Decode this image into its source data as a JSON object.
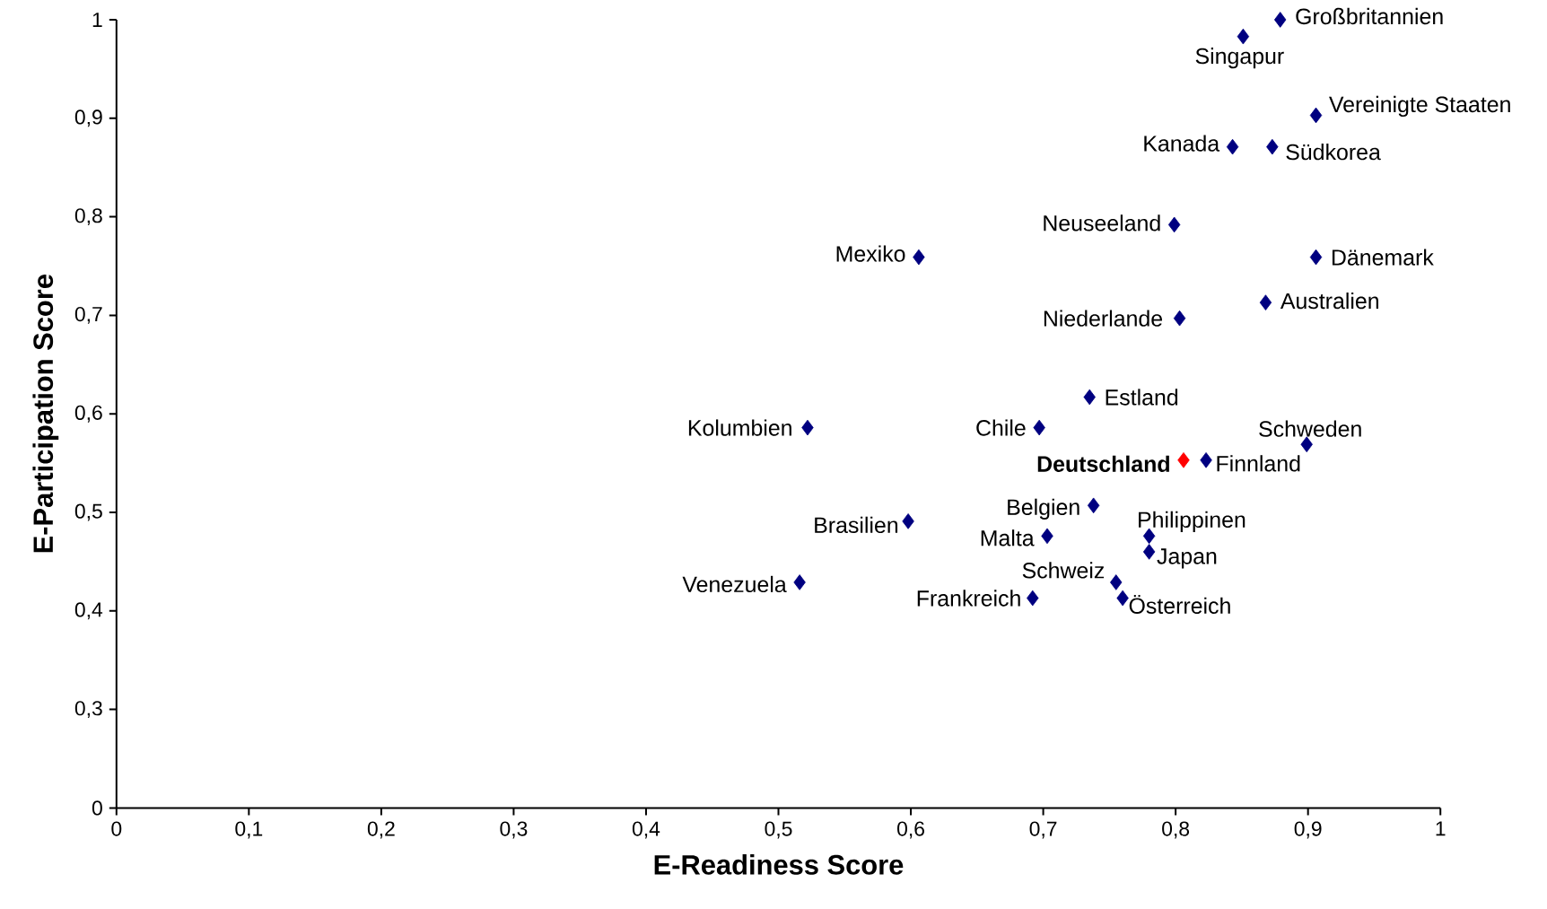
{
  "chart_data": {
    "type": "scatter",
    "xlabel": "E-Readiness Score",
    "ylabel": "E-Participation Score",
    "xlim": [
      0,
      1
    ],
    "ylim": [
      0.2,
      1
    ],
    "xticks": [
      0,
      {
        "value": 0.1,
        "label": "0,1"
      },
      {
        "value": 0.2,
        "label": "0,2"
      },
      {
        "value": 0.3,
        "label": "0,3"
      },
      {
        "value": 0.4,
        "label": "0,4"
      },
      {
        "value": 0.5,
        "label": "0,5"
      },
      {
        "value": 0.6,
        "label": "0,6"
      },
      {
        "value": 0.7,
        "label": "0,7"
      },
      {
        "value": 0.8,
        "label": "0,8"
      },
      {
        "value": 0.9,
        "label": "0,9"
      },
      1
    ],
    "yticks": [
      {
        "value": 0.2,
        "label": "0"
      },
      {
        "value": 0.3,
        "label": "0,3"
      },
      {
        "value": 0.4,
        "label": "0,4"
      },
      {
        "value": 0.5,
        "label": "0,5"
      },
      {
        "value": 0.6,
        "label": "0,6"
      },
      {
        "value": 0.7,
        "label": "0,7"
      },
      {
        "value": 0.8,
        "label": "0,8"
      },
      {
        "value": 0.9,
        "label": "0,9"
      },
      1
    ],
    "grid": false,
    "marker": "diamond",
    "series": [
      {
        "x": [
          0.879,
          0.851,
          0.906,
          0.843,
          0.873,
          0.799,
          0.606,
          0.906,
          0.868,
          0.803,
          0.735,
          0.522,
          0.697,
          0.899,
          0.806,
          0.823,
          0.738,
          0.598,
          0.78,
          0.703,
          0.78,
          0.516,
          0.755,
          0.692,
          0.76
        ],
        "values": [
          1.0,
          0.983,
          0.903,
          0.871,
          0.871,
          0.792,
          0.759,
          0.759,
          0.713,
          0.697,
          0.617,
          0.586,
          0.586,
          0.569,
          0.553,
          0.553,
          0.507,
          0.491,
          0.476,
          0.476,
          0.46,
          0.429,
          0.429,
          0.413,
          0.413
        ],
        "colors": [
          "#000080",
          "#000080",
          "#000080",
          "#000080",
          "#000080",
          "#000080",
          "#000080",
          "#000080",
          "#000080",
          "#000080",
          "#000080",
          "#000080",
          "#000080",
          "#000080",
          "#ff0000",
          "#000080",
          "#000080",
          "#000080",
          "#000080",
          "#000080",
          "#000080",
          "#000080",
          "#000080",
          "#000080",
          "#000080"
        ]
      }
    ],
    "annotations": [
      {
        "text": "Großbritannien",
        "x": 0.879,
        "y": 1.0
      },
      {
        "text": "Singapur",
        "x": 0.851,
        "y": 0.983
      },
      {
        "text": "Vereinigte Staaten",
        "x": 0.906,
        "y": 0.903
      },
      {
        "text": "Kanada",
        "x": 0.843,
        "y": 0.871
      },
      {
        "text": "Südkorea",
        "x": 0.873,
        "y": 0.871
      },
      {
        "text": "Neuseeland",
        "x": 0.799,
        "y": 0.792
      },
      {
        "text": "Mexiko",
        "x": 0.606,
        "y": 0.759
      },
      {
        "text": "Dänemark",
        "x": 0.906,
        "y": 0.759
      },
      {
        "text": "Australien",
        "x": 0.868,
        "y": 0.713
      },
      {
        "text": "Niederlande",
        "x": 0.803,
        "y": 0.697
      },
      {
        "text": "Estland",
        "x": 0.735,
        "y": 0.617
      },
      {
        "text": "Kolumbien",
        "x": 0.522,
        "y": 0.586
      },
      {
        "text": "Chile",
        "x": 0.697,
        "y": 0.586
      },
      {
        "text": "Schweden",
        "x": 0.899,
        "y": 0.569
      },
      {
        "text": "**Deutschland**",
        "x": 0.806,
        "y": 0.553
      },
      {
        "text": "Finnland",
        "x": 0.823,
        "y": 0.553
      },
      {
        "text": "Belgien",
        "x": 0.738,
        "y": 0.507
      },
      {
        "text": "Brasilien",
        "x": 0.598,
        "y": 0.491
      },
      {
        "text": "Philippinen",
        "x": 0.78,
        "y": 0.476
      },
      {
        "text": "Malta",
        "x": 0.703,
        "y": 0.476
      },
      {
        "text": "Japan",
        "x": 0.78,
        "y": 0.46
      },
      {
        "text": "Venezuela",
        "x": 0.516,
        "y": 0.429
      },
      {
        "text": "Schweiz",
        "x": 0.755,
        "y": 0.429
      },
      {
        "text": "Frankreich",
        "x": 0.692,
        "y": 0.413
      },
      {
        "text": "Österreich",
        "x": 0.76,
        "y": 0.413
      }
    ]
  }
}
